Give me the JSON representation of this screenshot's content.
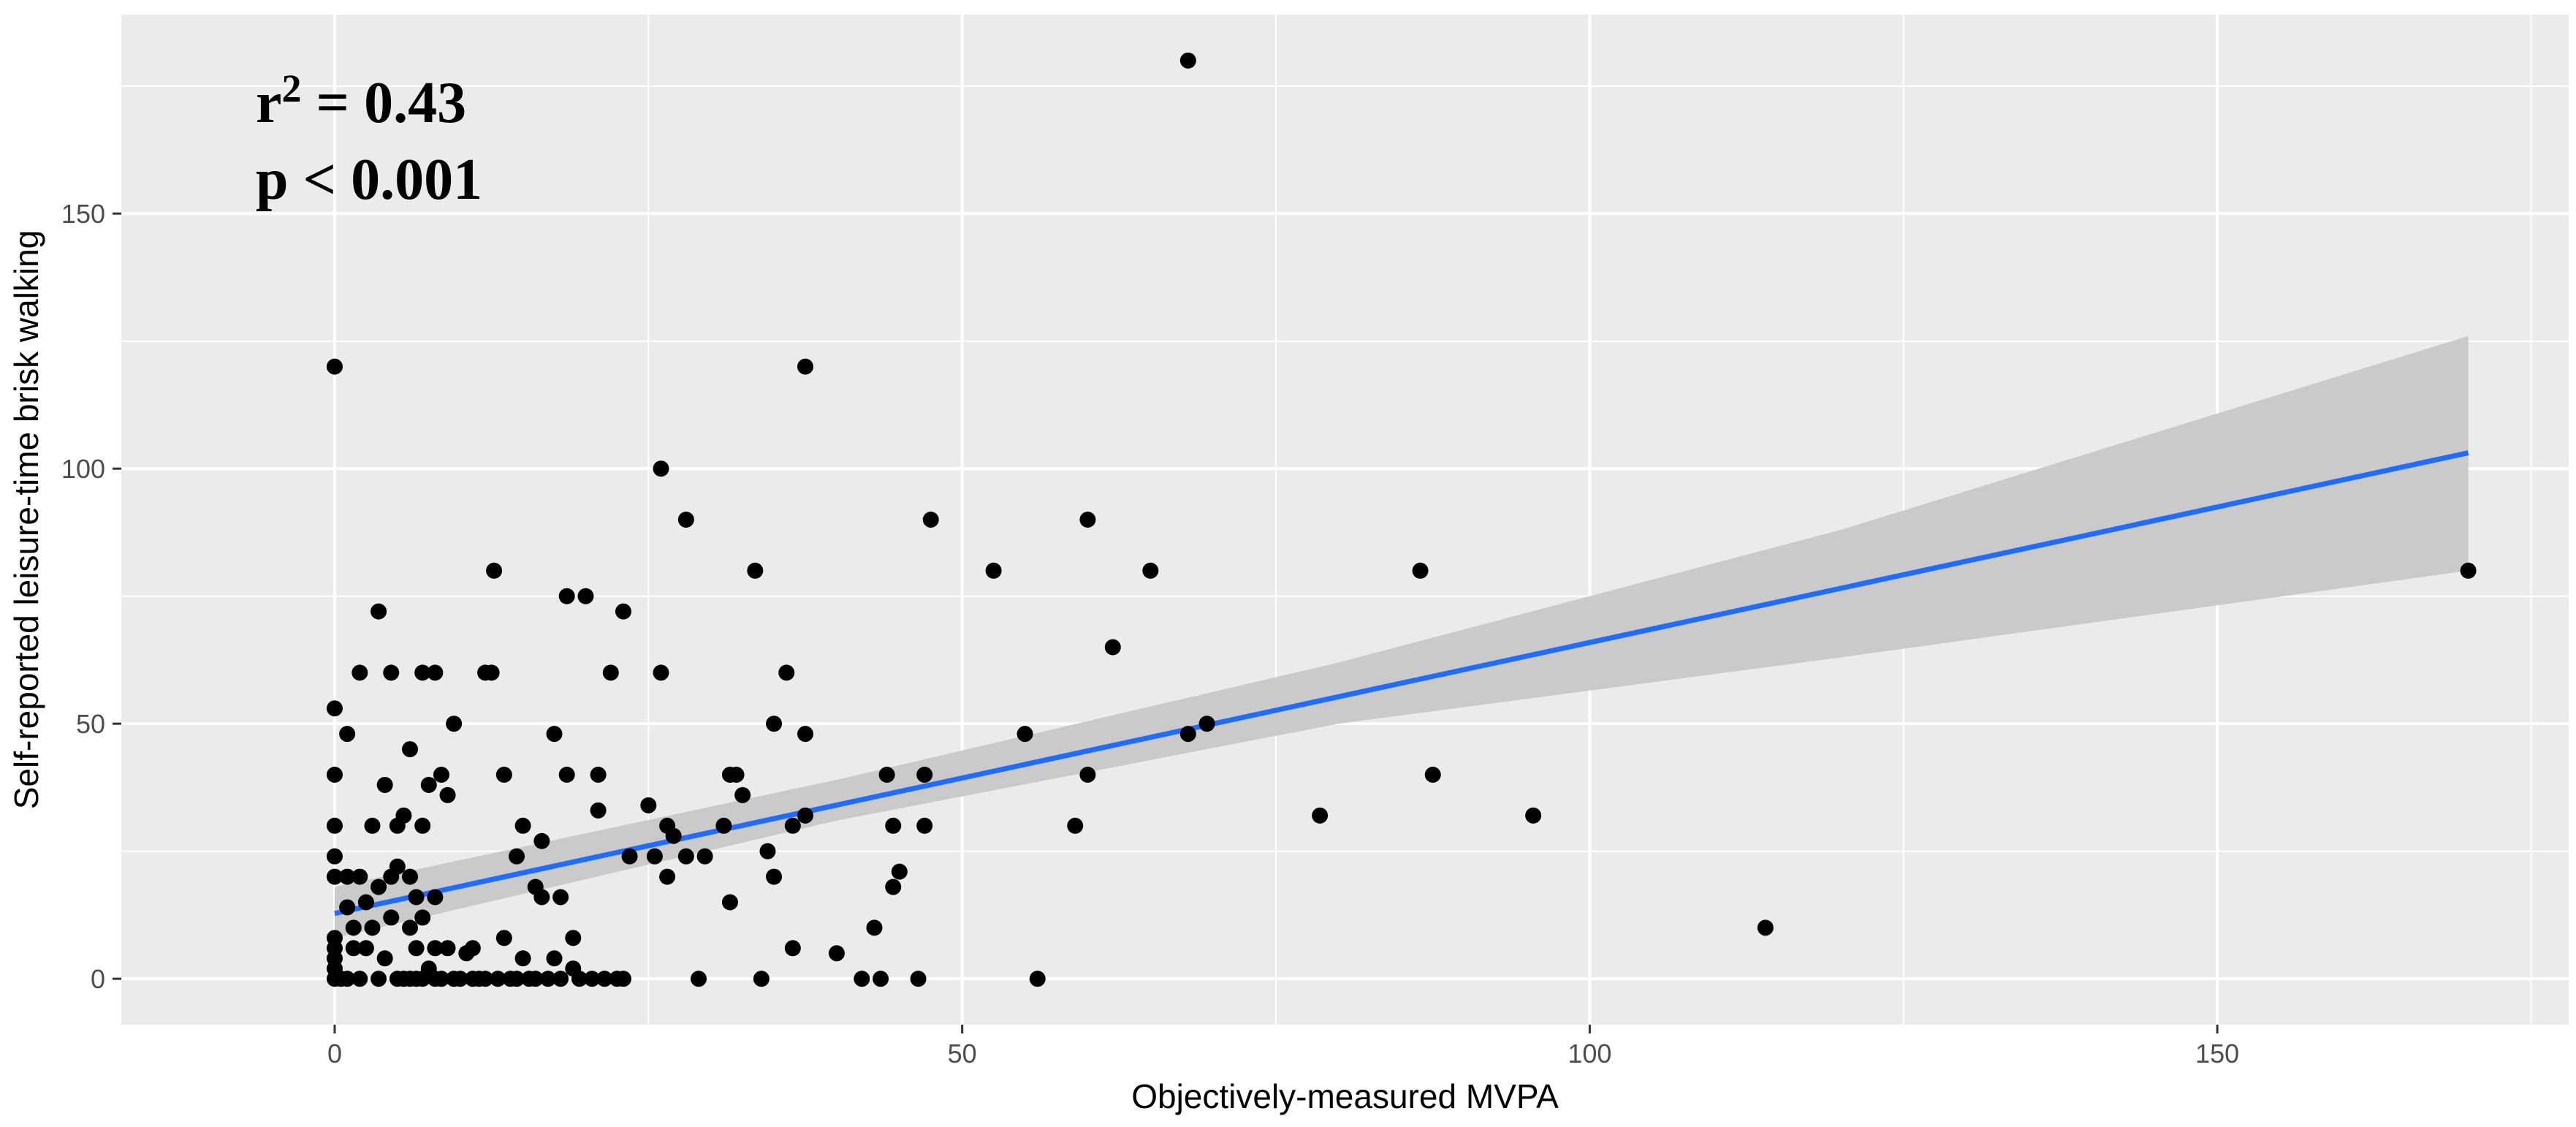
{
  "chart_data": {
    "type": "scatter",
    "title": "",
    "xlabel": "Objectively-measured MVPA",
    "ylabel": "Self-reported leisure-time brisk walking",
    "xlim": [
      -17,
      178
    ],
    "ylim": [
      -9,
      189
    ],
    "x_ticks": [
      0,
      50,
      100,
      150
    ],
    "y_ticks": [
      0,
      50,
      100,
      150
    ],
    "x_tick_labels": [
      "0",
      "50",
      "100",
      "150"
    ],
    "y_tick_labels": [
      "0",
      "50",
      "100",
      "150"
    ],
    "grid": true,
    "background": "#ebebeb",
    "point_color": "#000000",
    "line_color": "#1f6cff",
    "band_color": "#c8c8c8",
    "annotation": {
      "r2_base": "r",
      "r2_exponent": "2",
      "r2_value": " = 0.43",
      "p_text": "p < 0.001"
    },
    "regression": {
      "x": [
        0,
        170
      ],
      "y": [
        12.8,
        103.1
      ],
      "ci_x": [
        0,
        40,
        80,
        120,
        170
      ],
      "ci_lower": [
        8,
        31,
        50,
        63,
        80
      ],
      "ci_upper": [
        18,
        39,
        62,
        88,
        126
      ]
    },
    "points": [
      {
        "x": 0,
        "y": 120
      },
      {
        "x": 0,
        "y": 53
      },
      {
        "x": 0,
        "y": 40
      },
      {
        "x": 0,
        "y": 30
      },
      {
        "x": 0,
        "y": 24
      },
      {
        "x": 0,
        "y": 20
      },
      {
        "x": 0,
        "y": 8
      },
      {
        "x": 0,
        "y": 6
      },
      {
        "x": 0,
        "y": 4
      },
      {
        "x": 0,
        "y": 2
      },
      {
        "x": 0,
        "y": 0
      },
      {
        "x": 0.5,
        "y": 0
      },
      {
        "x": 1,
        "y": 48
      },
      {
        "x": 1,
        "y": 20
      },
      {
        "x": 1,
        "y": 14
      },
      {
        "x": 1,
        "y": 0
      },
      {
        "x": 1.5,
        "y": 10
      },
      {
        "x": 1.5,
        "y": 6
      },
      {
        "x": 2,
        "y": 60
      },
      {
        "x": 2,
        "y": 20
      },
      {
        "x": 2,
        "y": 0
      },
      {
        "x": 2.5,
        "y": 15
      },
      {
        "x": 2.5,
        "y": 6
      },
      {
        "x": 3,
        "y": 30
      },
      {
        "x": 3,
        "y": 10
      },
      {
        "x": 3.5,
        "y": 72
      },
      {
        "x": 3.5,
        "y": 18
      },
      {
        "x": 3.5,
        "y": 0
      },
      {
        "x": 4,
        "y": 38
      },
      {
        "x": 4,
        "y": 4
      },
      {
        "x": 4.5,
        "y": 60
      },
      {
        "x": 4.5,
        "y": 20
      },
      {
        "x": 4.5,
        "y": 12
      },
      {
        "x": 5,
        "y": 30
      },
      {
        "x": 5,
        "y": 22
      },
      {
        "x": 5,
        "y": 0
      },
      {
        "x": 5.5,
        "y": 32
      },
      {
        "x": 5.5,
        "y": 0
      },
      {
        "x": 6,
        "y": 45
      },
      {
        "x": 6,
        "y": 20
      },
      {
        "x": 6,
        "y": 10
      },
      {
        "x": 6,
        "y": 0
      },
      {
        "x": 6.5,
        "y": 16
      },
      {
        "x": 6.5,
        "y": 6
      },
      {
        "x": 6.5,
        "y": 0
      },
      {
        "x": 7,
        "y": 60
      },
      {
        "x": 7,
        "y": 30
      },
      {
        "x": 7,
        "y": 12
      },
      {
        "x": 7,
        "y": 0
      },
      {
        "x": 7.5,
        "y": 38
      },
      {
        "x": 7.5,
        "y": 2
      },
      {
        "x": 8,
        "y": 60
      },
      {
        "x": 8,
        "y": 16
      },
      {
        "x": 8,
        "y": 6
      },
      {
        "x": 8,
        "y": 0
      },
      {
        "x": 8.5,
        "y": 40
      },
      {
        "x": 8.5,
        "y": 0
      },
      {
        "x": 9,
        "y": 36
      },
      {
        "x": 9,
        "y": 6
      },
      {
        "x": 9.5,
        "y": 50
      },
      {
        "x": 9.5,
        "y": 0
      },
      {
        "x": 10,
        "y": 0
      },
      {
        "x": 10.5,
        "y": 5
      },
      {
        "x": 11,
        "y": 6
      },
      {
        "x": 11,
        "y": 0
      },
      {
        "x": 11.5,
        "y": 0
      },
      {
        "x": 12,
        "y": 60
      },
      {
        "x": 12,
        "y": 0
      },
      {
        "x": 12.5,
        "y": 60
      },
      {
        "x": 13,
        "y": 0
      },
      {
        "x": 12.7,
        "y": 80
      },
      {
        "x": 13.5,
        "y": 40
      },
      {
        "x": 13.5,
        "y": 8
      },
      {
        "x": 14,
        "y": 0
      },
      {
        "x": 14.5,
        "y": 24
      },
      {
        "x": 14.5,
        "y": 0
      },
      {
        "x": 15,
        "y": 30
      },
      {
        "x": 15,
        "y": 4
      },
      {
        "x": 15.5,
        "y": 0
      },
      {
        "x": 16,
        "y": 18
      },
      {
        "x": 16,
        "y": 0
      },
      {
        "x": 16.5,
        "y": 27
      },
      {
        "x": 16.5,
        "y": 16
      },
      {
        "x": 17,
        "y": 0
      },
      {
        "x": 17.5,
        "y": 48
      },
      {
        "x": 17.5,
        "y": 4
      },
      {
        "x": 18,
        "y": 16
      },
      {
        "x": 18,
        "y": 0
      },
      {
        "x": 18.5,
        "y": 75
      },
      {
        "x": 18.5,
        "y": 40
      },
      {
        "x": 19,
        "y": 8
      },
      {
        "x": 19,
        "y": 2
      },
      {
        "x": 19.5,
        "y": 0
      },
      {
        "x": 20,
        "y": 75
      },
      {
        "x": 20.5,
        "y": 0
      },
      {
        "x": 21,
        "y": 40
      },
      {
        "x": 21,
        "y": 33
      },
      {
        "x": 21.5,
        "y": 0
      },
      {
        "x": 22,
        "y": 60
      },
      {
        "x": 22.5,
        "y": 0
      },
      {
        "x": 23,
        "y": 72
      },
      {
        "x": 23,
        "y": 0
      },
      {
        "x": 23.5,
        "y": 24
      },
      {
        "x": 25,
        "y": 34
      },
      {
        "x": 25.5,
        "y": 24
      },
      {
        "x": 26,
        "y": 100
      },
      {
        "x": 26,
        "y": 60
      },
      {
        "x": 26.5,
        "y": 30
      },
      {
        "x": 26.5,
        "y": 20
      },
      {
        "x": 27,
        "y": 28
      },
      {
        "x": 28,
        "y": 90
      },
      {
        "x": 28,
        "y": 24
      },
      {
        "x": 29,
        "y": 0
      },
      {
        "x": 29.5,
        "y": 24
      },
      {
        "x": 31,
        "y": 30
      },
      {
        "x": 31.5,
        "y": 40
      },
      {
        "x": 31.5,
        "y": 15
      },
      {
        "x": 32,
        "y": 40
      },
      {
        "x": 32.5,
        "y": 36
      },
      {
        "x": 33.5,
        "y": 80
      },
      {
        "x": 34,
        "y": 0
      },
      {
        "x": 34.5,
        "y": 25
      },
      {
        "x": 35,
        "y": 50
      },
      {
        "x": 35,
        "y": 20
      },
      {
        "x": 36,
        "y": 60
      },
      {
        "x": 36.5,
        "y": 30
      },
      {
        "x": 36.5,
        "y": 6
      },
      {
        "x": 37.5,
        "y": 48
      },
      {
        "x": 37.5,
        "y": 32
      },
      {
        "x": 37.5,
        "y": 120
      },
      {
        "x": 40,
        "y": 5
      },
      {
        "x": 42,
        "y": 0
      },
      {
        "x": 43,
        "y": 10
      },
      {
        "x": 43.5,
        "y": 0
      },
      {
        "x": 44,
        "y": 40
      },
      {
        "x": 44.5,
        "y": 30
      },
      {
        "x": 44.5,
        "y": 18
      },
      {
        "x": 45,
        "y": 21
      },
      {
        "x": 46.5,
        "y": 0
      },
      {
        "x": 47,
        "y": 40
      },
      {
        "x": 47,
        "y": 30
      },
      {
        "x": 47.5,
        "y": 90
      },
      {
        "x": 52.5,
        "y": 80
      },
      {
        "x": 55,
        "y": 48
      },
      {
        "x": 56,
        "y": 0
      },
      {
        "x": 59,
        "y": 30
      },
      {
        "x": 60,
        "y": 90
      },
      {
        "x": 60,
        "y": 40
      },
      {
        "x": 62,
        "y": 65
      },
      {
        "x": 65,
        "y": 80
      },
      {
        "x": 68,
        "y": 180
      },
      {
        "x": 68,
        "y": 48
      },
      {
        "x": 69.5,
        "y": 50
      },
      {
        "x": 78.5,
        "y": 32
      },
      {
        "x": 86.5,
        "y": 80
      },
      {
        "x": 87.5,
        "y": 40
      },
      {
        "x": 95.5,
        "y": 32
      },
      {
        "x": 114,
        "y": 10
      },
      {
        "x": 170,
        "y": 80
      }
    ]
  }
}
